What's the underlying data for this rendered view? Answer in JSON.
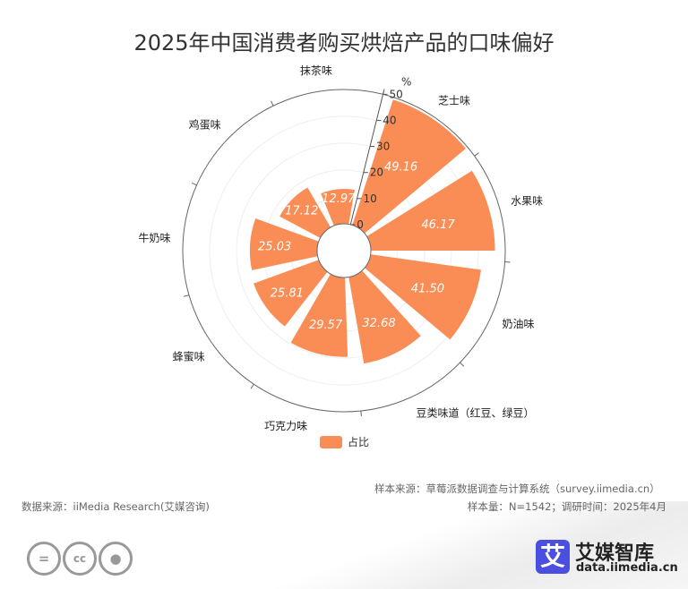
{
  "title": "2025年中国消费者购买烘焙产品的口味偏好",
  "chart_data": {
    "type": "polar-bar",
    "title": "2025年中国消费者购买烘焙产品的口味偏好",
    "radial_unit": "%",
    "rlim": [
      0,
      50
    ],
    "radial_ticks": [
      0,
      10,
      20,
      30,
      40,
      50
    ],
    "categories": [
      "芝士味",
      "水果味",
      "奶油味",
      "豆类味道（红豆、绿豆）",
      "巧克力味",
      "蜂蜜味",
      "牛奶味",
      "鸡蛋味",
      "抹茶味"
    ],
    "series": [
      {
        "name": "占比",
        "values": [
          49.16,
          46.17,
          41.5,
          32.68,
          29.57,
          25.81,
          25.03,
          17.12,
          12.97
        ]
      }
    ],
    "color": "#f98d55",
    "legend": "bottom-center",
    "grid": true
  },
  "footer": {
    "data_source": "数据来源：iiMedia Research(艾媒咨询)",
    "sample_source": "样本来源：草莓派数据调查与计算系统（survey.iimedia.cn）",
    "sample_info": "样本量：N=1542；调研时间：2025年4月",
    "logo_char": "艾",
    "logo_name": "艾媒智库",
    "logo_url": "data.iimedia.cn",
    "cc_icons": [
      "equals-icon",
      "cc-icon",
      "person-icon"
    ]
  }
}
